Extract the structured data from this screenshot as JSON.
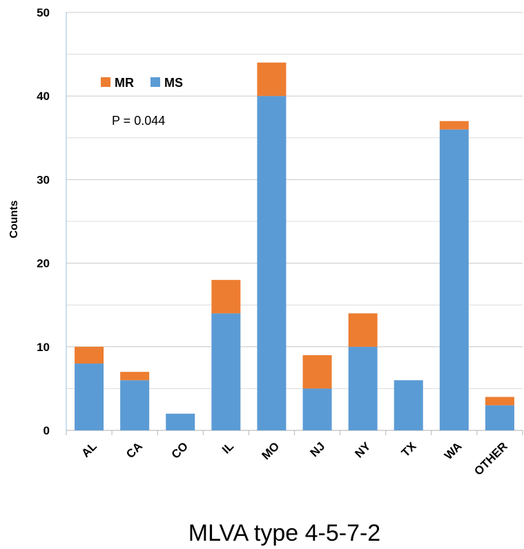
{
  "chart_data": {
    "type": "bar",
    "stacked": true,
    "categories": [
      "AL",
      "CA",
      "CO",
      "IL",
      "MO",
      "NJ",
      "NY",
      "TX",
      "WA",
      "OTHER"
    ],
    "series": [
      {
        "name": "MS",
        "color": "#5B9BD5",
        "values": [
          8,
          6,
          2,
          14,
          40,
          5,
          10,
          6,
          36,
          3
        ]
      },
      {
        "name": "MR",
        "color": "#ED7D31",
        "values": [
          2,
          1,
          0,
          4,
          4,
          4,
          4,
          0,
          1,
          1
        ]
      }
    ],
    "ylim": [
      0,
      50
    ],
    "yticks": [
      0,
      10,
      20,
      30,
      40,
      50
    ],
    "ylabel": "Counts",
    "xlabel": "",
    "grid": true,
    "legend": {
      "placement": "top-left",
      "order": [
        "MR",
        "MS"
      ]
    },
    "annotation": "P = 0.044"
  },
  "caption": "MLVA type 4-5-7-2"
}
